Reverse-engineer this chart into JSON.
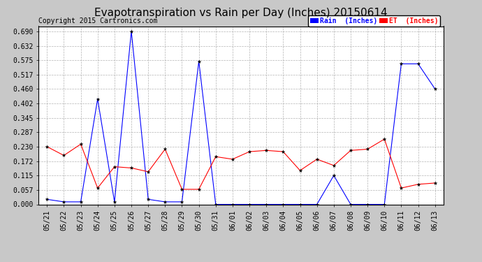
{
  "title": "Evapotranspiration vs Rain per Day (Inches) 20150614",
  "copyright": "Copyright 2015 Cartronics.com",
  "labels": [
    "05/21",
    "05/22",
    "05/23",
    "05/24",
    "05/25",
    "05/26",
    "05/27",
    "05/28",
    "05/29",
    "05/30",
    "05/31",
    "06/01",
    "06/02",
    "06/03",
    "06/04",
    "06/05",
    "06/06",
    "06/07",
    "06/08",
    "06/09",
    "06/10",
    "06/11",
    "06/12",
    "06/13"
  ],
  "rain_inches": [
    0.02,
    0.01,
    0.01,
    0.42,
    0.01,
    0.69,
    0.02,
    0.01,
    0.01,
    0.57,
    0.0,
    0.0,
    0.0,
    0.0,
    0.0,
    0.0,
    0.0,
    0.115,
    0.0,
    0.0,
    0.0,
    0.56,
    0.56,
    0.46
  ],
  "et_inches": [
    0.23,
    0.195,
    0.24,
    0.065,
    0.15,
    0.145,
    0.13,
    0.22,
    0.06,
    0.06,
    0.19,
    0.18,
    0.21,
    0.215,
    0.21,
    0.135,
    0.18,
    0.155,
    0.215,
    0.22,
    0.26,
    0.065,
    0.08,
    0.085
  ],
  "rain_color": "#0000ff",
  "et_color": "#ff0000",
  "bg_color": "#c8c8c8",
  "plot_bg_color": "#ffffff",
  "grid_color": "#a0a0a0",
  "title_color": "#000000",
  "copyright_color": "#000000",
  "legend_rain_bg": "#0000ff",
  "legend_et_bg": "#ff0000",
  "yticks": [
    0.0,
    0.057,
    0.115,
    0.172,
    0.23,
    0.287,
    0.345,
    0.402,
    0.46,
    0.517,
    0.575,
    0.632,
    0.69
  ],
  "ylim": [
    0.0,
    0.71
  ],
  "title_fontsize": 11,
  "tick_fontsize": 7,
  "copyright_fontsize": 7,
  "legend_fontsize": 7
}
